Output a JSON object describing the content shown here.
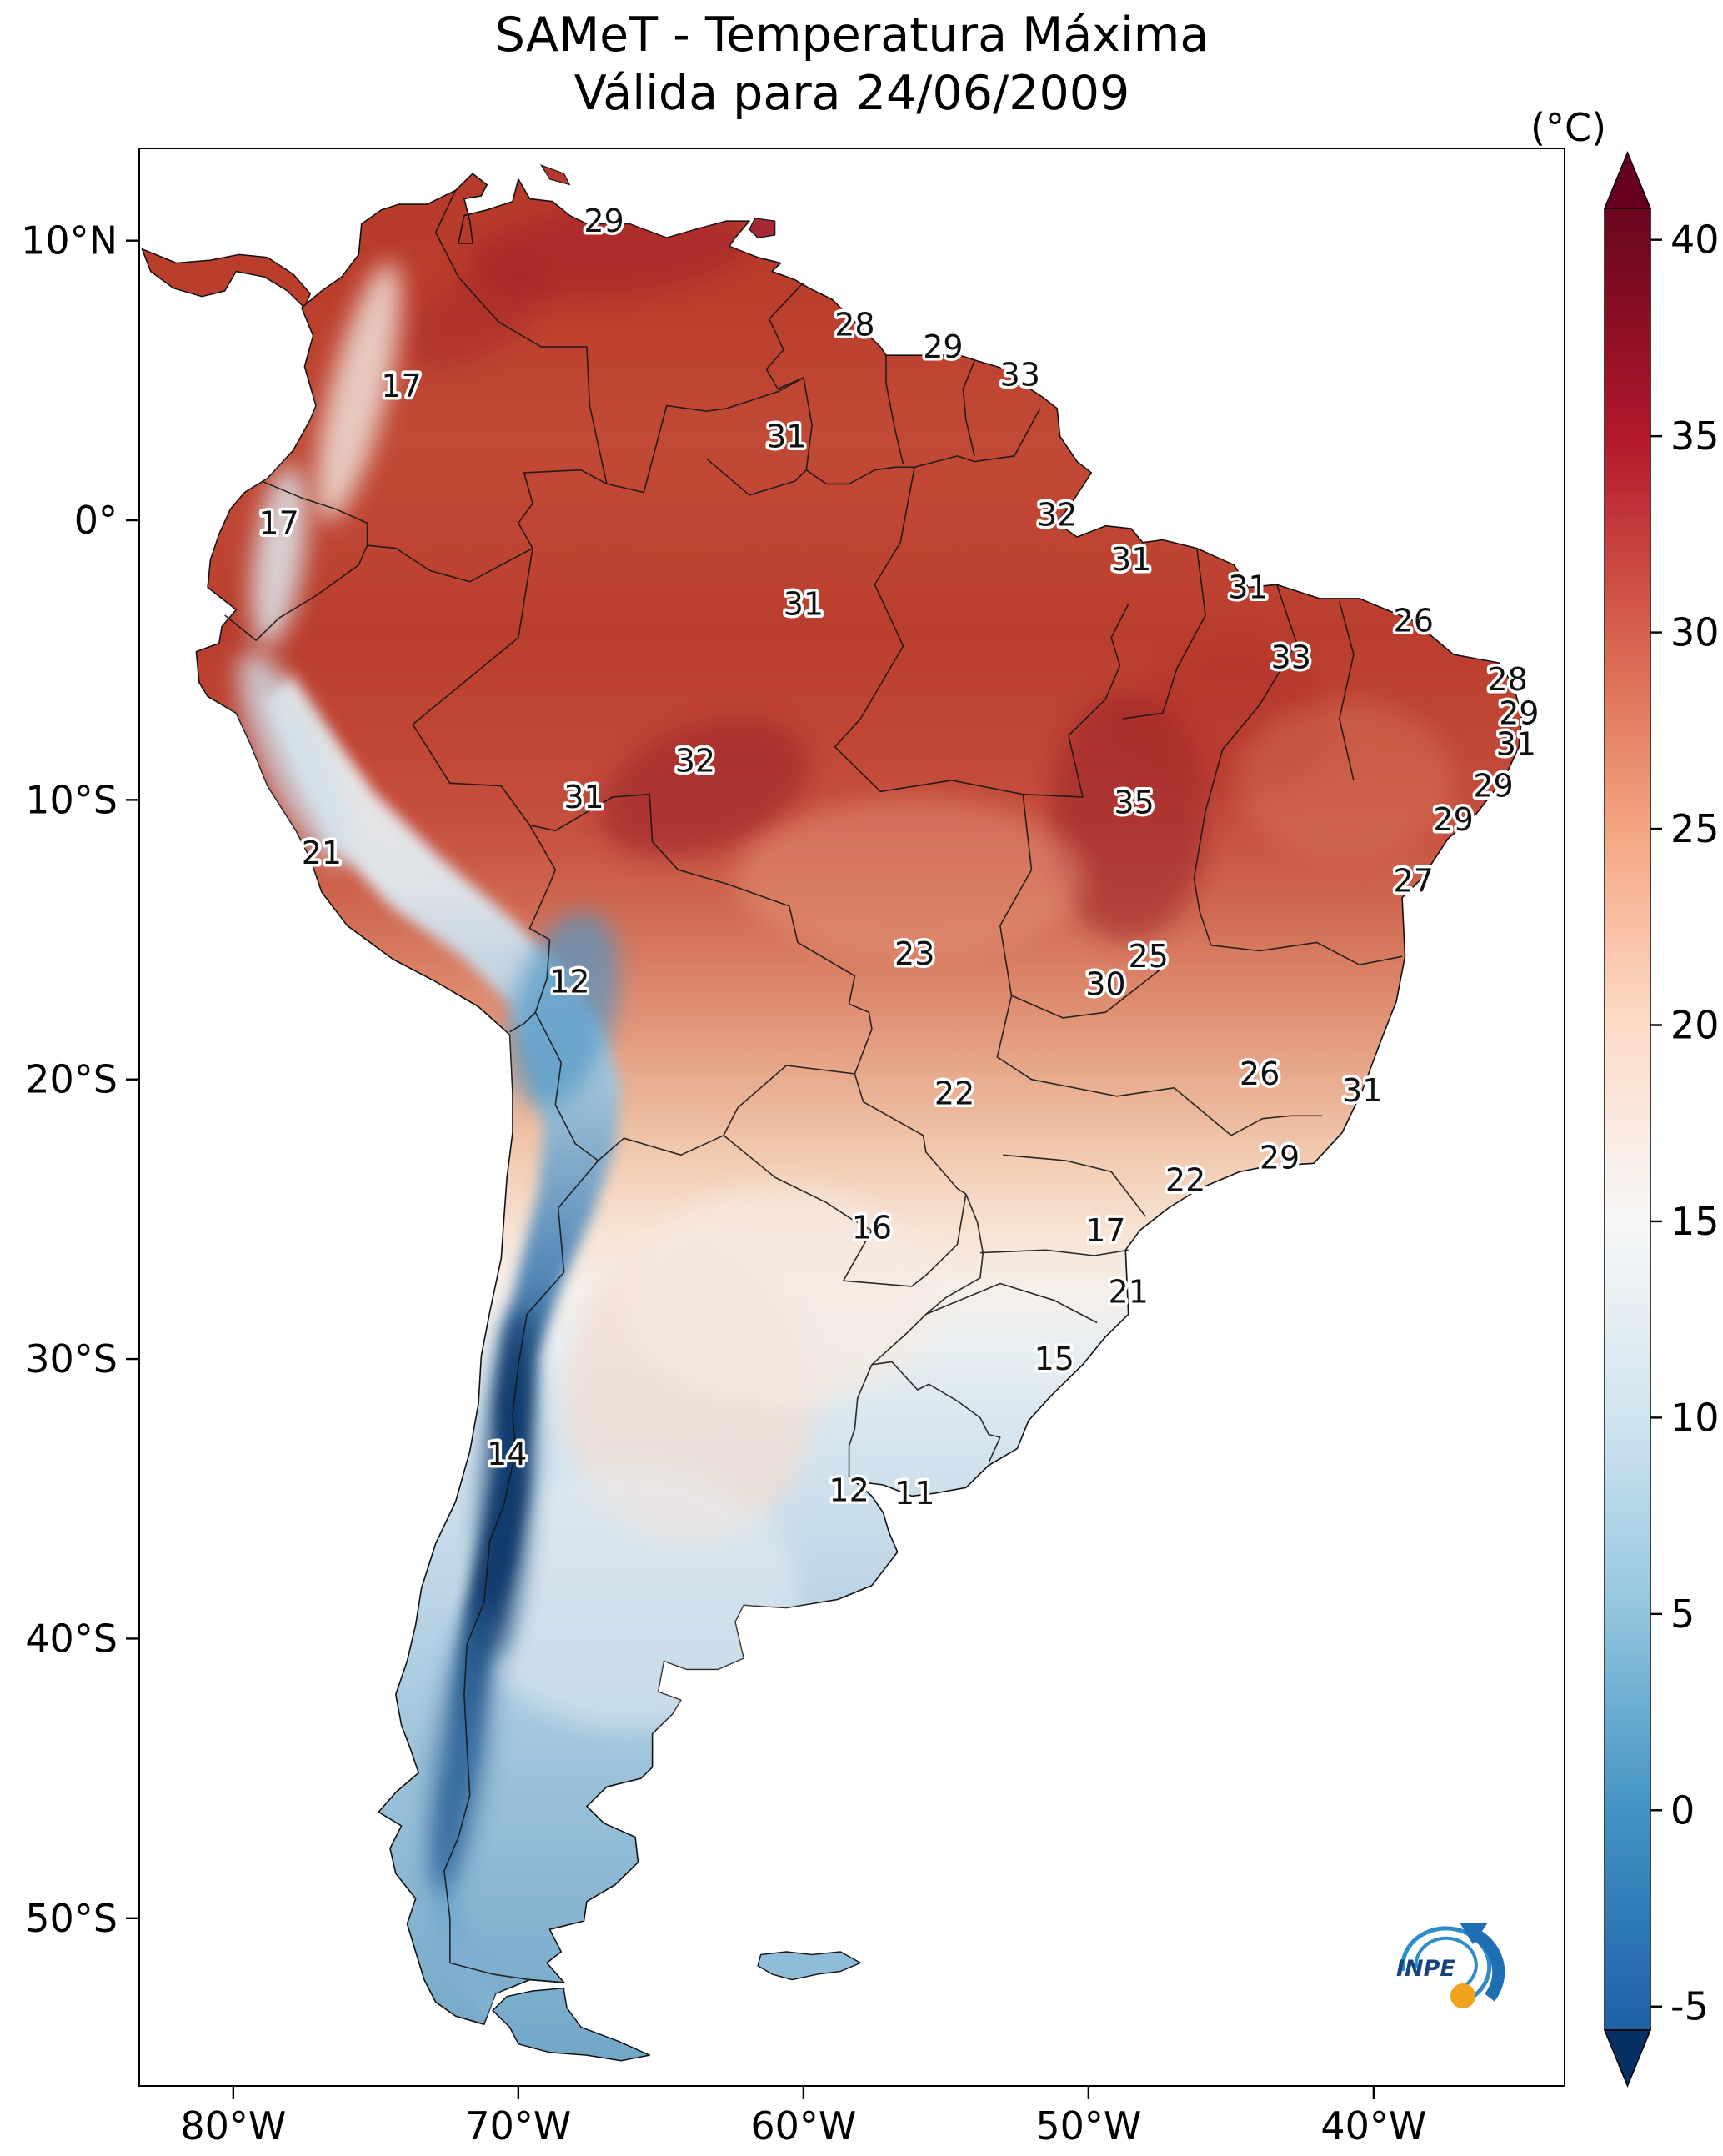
{
  "title": {
    "line1": "SAMeT - Temperatura Máxima",
    "line2": "Válida para 24/06/2009"
  },
  "colorbar": {
    "unit_label": "(°C)",
    "tick_values": [
      40,
      35,
      30,
      25,
      20,
      15,
      10,
      5,
      0,
      -5
    ]
  },
  "axes": {
    "lat_ticks": [
      {
        "label": "10°N",
        "value": 10
      },
      {
        "label": "0°",
        "value": 0
      },
      {
        "label": "10°S",
        "value": -10
      },
      {
        "label": "20°S",
        "value": -20
      },
      {
        "label": "30°S",
        "value": -30
      },
      {
        "label": "40°S",
        "value": -40
      },
      {
        "label": "50°S",
        "value": -50
      }
    ],
    "lon_ticks": [
      {
        "label": "80°W",
        "value": -80
      },
      {
        "label": "70°W",
        "value": -70
      },
      {
        "label": "60°W",
        "value": -60
      },
      {
        "label": "50°W",
        "value": -50
      },
      {
        "label": "40°W",
        "value": -40
      }
    ]
  },
  "logo": {
    "text": "INPE"
  },
  "colors": {
    "hot": "#b2182b",
    "cold": "#2166ac",
    "over": "#67001f",
    "under": "#053061",
    "outline": "#111111"
  },
  "chart_data": {
    "type": "heatmap",
    "title": "SAMeT - Temperatura Máxima",
    "subtitle": "Válida para 24/06/2009",
    "units": "°C",
    "colormap": "RdBu_r",
    "colorbar_range": [
      -5,
      40
    ],
    "colorbar_extended": true,
    "lon_range": [
      -83.3,
      -33.3
    ],
    "lat_range": [
      -56.0,
      13.3
    ],
    "grid": false,
    "legend_position": "right-colorbar",
    "station_max_temps": [
      {
        "value": 29,
        "lon": -67.0,
        "lat": 10.7
      },
      {
        "value": 17,
        "lon": -74.1,
        "lat": 4.8
      },
      {
        "value": 17,
        "lon": -78.4,
        "lat": -0.1
      },
      {
        "value": 28,
        "lon": -58.2,
        "lat": 7.0
      },
      {
        "value": 29,
        "lon": -55.1,
        "lat": 6.2
      },
      {
        "value": 33,
        "lon": -52.4,
        "lat": 5.2
      },
      {
        "value": 31,
        "lon": -60.6,
        "lat": 3.0
      },
      {
        "value": 32,
        "lon": -51.1,
        "lat": 0.2
      },
      {
        "value": 31,
        "lon": -48.5,
        "lat": -1.4
      },
      {
        "value": 31,
        "lon": -44.4,
        "lat": -2.4
      },
      {
        "value": 31,
        "lon": -60.0,
        "lat": -3.0
      },
      {
        "value": 26,
        "lon": -38.6,
        "lat": -3.6
      },
      {
        "value": 33,
        "lon": -42.9,
        "lat": -4.9
      },
      {
        "value": 28,
        "lon": -35.3,
        "lat": -5.7
      },
      {
        "value": 29,
        "lon": -34.9,
        "lat": -6.9
      },
      {
        "value": 31,
        "lon": -35.0,
        "lat": -8.0
      },
      {
        "value": 32,
        "lon": -63.8,
        "lat": -8.6
      },
      {
        "value": 29,
        "lon": -35.8,
        "lat": -9.5
      },
      {
        "value": 31,
        "lon": -67.7,
        "lat": -9.9
      },
      {
        "value": 35,
        "lon": -48.4,
        "lat": -10.1
      },
      {
        "value": 29,
        "lon": -37.2,
        "lat": -10.7
      },
      {
        "value": 27,
        "lon": -38.6,
        "lat": -12.9
      },
      {
        "value": 21,
        "lon": -76.9,
        "lat": -11.9
      },
      {
        "value": 12,
        "lon": -68.2,
        "lat": -16.5
      },
      {
        "value": 23,
        "lon": -56.1,
        "lat": -15.5
      },
      {
        "value": 25,
        "lon": -47.9,
        "lat": -15.6
      },
      {
        "value": 30,
        "lon": -49.4,
        "lat": -16.6
      },
      {
        "value": 26,
        "lon": -44.0,
        "lat": -19.8
      },
      {
        "value": 31,
        "lon": -40.4,
        "lat": -20.4
      },
      {
        "value": 22,
        "lon": -54.7,
        "lat": -20.5
      },
      {
        "value": 29,
        "lon": -43.3,
        "lat": -22.8
      },
      {
        "value": 22,
        "lon": -46.6,
        "lat": -23.6
      },
      {
        "value": 16,
        "lon": -57.6,
        "lat": -25.3
      },
      {
        "value": 17,
        "lon": -49.4,
        "lat": -25.4
      },
      {
        "value": 21,
        "lon": -48.6,
        "lat": -27.6
      },
      {
        "value": 15,
        "lon": -51.2,
        "lat": -30.0
      },
      {
        "value": 14,
        "lon": -70.4,
        "lat": -33.4
      },
      {
        "value": 12,
        "lon": -58.4,
        "lat": -34.7
      },
      {
        "value": 11,
        "lon": -56.1,
        "lat": -34.8
      }
    ]
  }
}
